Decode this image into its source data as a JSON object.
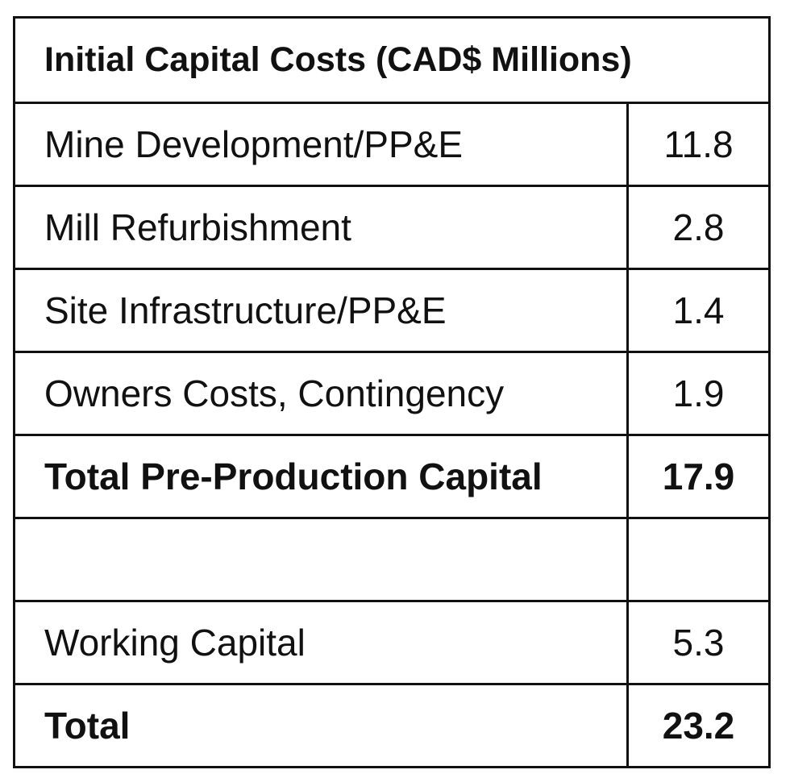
{
  "table": {
    "title": "Initial Capital Costs (CAD$ Millions)",
    "rows": [
      {
        "label": "Mine Development/PP&E",
        "value": "11.8",
        "bold": false
      },
      {
        "label": "Mill Refurbishment",
        "value": "2.8",
        "bold": false
      },
      {
        "label": "Site Infrastructure/PP&E",
        "value": "1.4",
        "bold": false
      },
      {
        "label": "Owners Costs, Contingency",
        "value": "1.9",
        "bold": false
      },
      {
        "label": "Total Pre-Production Capital",
        "value": "17.9",
        "bold": true
      },
      {
        "label": "",
        "value": "",
        "bold": false
      },
      {
        "label": "Working Capital",
        "value": "5.3",
        "bold": false
      },
      {
        "label": "Total",
        "value": "23.2",
        "bold": true
      }
    ]
  }
}
